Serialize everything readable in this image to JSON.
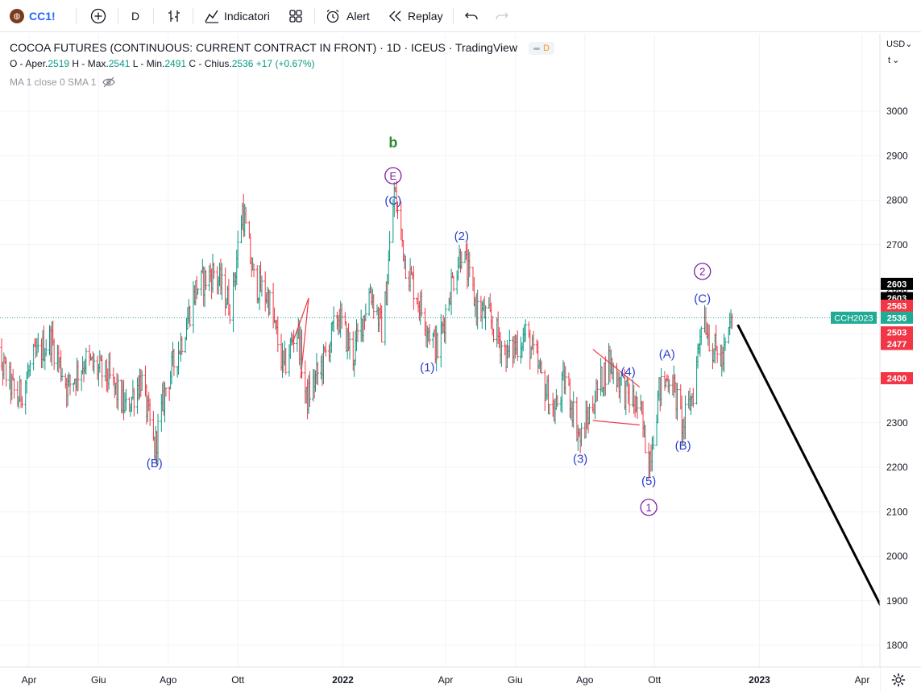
{
  "toolbar": {
    "symbol": "CC1!",
    "interval": "D",
    "indicators_label": "Indicatori",
    "alert_label": "Alert",
    "replay_label": "Replay",
    "icons": [
      "plus-circle-icon",
      "compare-icon",
      "indicators-icon",
      "templates-icon",
      "alert-icon",
      "replay-icon",
      "undo-icon",
      "redo-icon"
    ]
  },
  "legend": {
    "title": "COCOA FUTURES (CONTINUOUS: CURRENT CONTRACT IN FRONT) · 1D · ICEUS · TradingView",
    "badge": "D",
    "o_label": "O - Aper.",
    "o": "2519",
    "h_label": "H - Max.",
    "h": "2541",
    "l_label": "L - Min.",
    "l": "2491",
    "c_label": "C - Chius.",
    "c": "2536",
    "change": "+17 (+0.67%)",
    "ma": "MA 1 close 0 SMA 1"
  },
  "scale": {
    "currency": "USD",
    "unit": "t"
  },
  "colors": {
    "up": "#089981",
    "down": "#f23645",
    "wave_blue": "#2a3ecc",
    "wave_purple": "#7b1fa2",
    "wave_green": "#2e8b2e",
    "last_price": "#22ab94",
    "marker_red": "#f23645",
    "marker_black": "#000000"
  },
  "chart_data": {
    "type": "ohlc",
    "ylim": [
      1750,
      3100
    ],
    "yticks": [
      1800,
      1900,
      2000,
      2100,
      2200,
      2300,
      2400,
      2500,
      2600,
      2700,
      2800,
      2900,
      3000
    ],
    "xticks": [
      {
        "label": "Apr",
        "date": "2021-04-01"
      },
      {
        "label": "Giu",
        "date": "2021-06-01"
      },
      {
        "label": "Ago",
        "date": "2021-08-01"
      },
      {
        "label": "Ott",
        "date": "2021-10-01"
      },
      {
        "label": "2022",
        "date": "2022-01-01"
      },
      {
        "label": "Apr",
        "date": "2022-04-01"
      },
      {
        "label": "Giu",
        "date": "2022-06-01"
      },
      {
        "label": "Ago",
        "date": "2022-08-01"
      },
      {
        "label": "Ott",
        "date": "2022-10-01"
      },
      {
        "label": "2023",
        "date": "2023-01-01"
      },
      {
        "label": "Apr",
        "date": "2023-04-01"
      }
    ],
    "price_path": [
      [
        "2021-02-25",
        2480
      ],
      [
        "2021-03-10",
        2420
      ],
      [
        "2021-03-22",
        2350
      ],
      [
        "2021-04-05",
        2440
      ],
      [
        "2021-04-20",
        2490
      ],
      [
        "2021-05-05",
        2380
      ],
      [
        "2021-05-20",
        2440
      ],
      [
        "2021-06-10",
        2400
      ],
      [
        "2021-06-25",
        2330
      ],
      [
        "2021-07-08",
        2400
      ],
      [
        "2021-07-20",
        2240
      ],
      [
        "2021-07-30",
        2380
      ],
      [
        "2021-08-12",
        2480
      ],
      [
        "2021-08-25",
        2600
      ],
      [
        "2021-09-10",
        2640
      ],
      [
        "2021-09-25",
        2560
      ],
      [
        "2021-10-05",
        2780
      ],
      [
        "2021-10-15",
        2620
      ],
      [
        "2021-10-28",
        2580
      ],
      [
        "2021-11-10",
        2420
      ],
      [
        "2021-11-22",
        2520
      ],
      [
        "2021-11-30",
        2350
      ],
      [
        "2021-12-15",
        2440
      ],
      [
        "2021-12-28",
        2540
      ],
      [
        "2022-01-10",
        2450
      ],
      [
        "2022-01-25",
        2600
      ],
      [
        "2022-02-05",
        2500
      ],
      [
        "2022-02-15",
        2820
      ],
      [
        "2022-02-25",
        2660
      ],
      [
        "2022-03-10",
        2560
      ],
      [
        "2022-03-25",
        2460
      ],
      [
        "2022-04-05",
        2600
      ],
      [
        "2022-04-15",
        2690
      ],
      [
        "2022-04-28",
        2560
      ],
      [
        "2022-05-10",
        2530
      ],
      [
        "2022-05-25",
        2450
      ],
      [
        "2022-06-10",
        2500
      ],
      [
        "2022-06-20",
        2430
      ],
      [
        "2022-07-05",
        2320
      ],
      [
        "2022-07-15",
        2400
      ],
      [
        "2022-07-28",
        2260
      ],
      [
        "2022-08-10",
        2360
      ],
      [
        "2022-08-22",
        2440
      ],
      [
        "2022-09-05",
        2370
      ],
      [
        "2022-09-18",
        2330
      ],
      [
        "2022-09-26",
        2210
      ],
      [
        "2022-10-05",
        2370
      ],
      [
        "2022-10-15",
        2410
      ],
      [
        "2022-10-26",
        2290
      ],
      [
        "2022-11-05",
        2380
      ],
      [
        "2022-11-12",
        2560
      ],
      [
        "2022-11-20",
        2470
      ],
      [
        "2022-11-30",
        2440
      ],
      [
        "2022-12-08",
        2536
      ]
    ],
    "wave_labels": [
      {
        "text": "b",
        "date": "2022-02-14",
        "price": 2930,
        "color": "green"
      },
      {
        "text": "E",
        "date": "2022-02-14",
        "price": 2855,
        "color": "purple",
        "circle": true
      },
      {
        "text": "(C)",
        "date": "2022-02-14",
        "price": 2800,
        "color": "blue"
      },
      {
        "text": "(B)",
        "date": "2021-07-20",
        "price": 2210,
        "color": "blue"
      },
      {
        "text": "(2)",
        "date": "2022-04-15",
        "price": 2720,
        "color": "blue"
      },
      {
        "text": "(1)",
        "date": "2022-03-16",
        "price": 2425,
        "color": "blue"
      },
      {
        "text": "(3)",
        "date": "2022-07-28",
        "price": 2220,
        "color": "blue"
      },
      {
        "text": "(A)",
        "date": "2022-10-12",
        "price": 2455,
        "color": "blue"
      },
      {
        "text": "(4)",
        "date": "2022-09-08",
        "price": 2415,
        "color": "blue"
      },
      {
        "text": "(5)",
        "date": "2022-09-26",
        "price": 2170,
        "color": "blue"
      },
      {
        "text": "1",
        "date": "2022-09-26",
        "price": 2110,
        "color": "purple",
        "circle": true
      },
      {
        "text": "(B)",
        "date": "2022-10-26",
        "price": 2250,
        "color": "blue"
      },
      {
        "text": "2",
        "date": "2022-11-12",
        "price": 2640,
        "color": "purple",
        "circle": true
      },
      {
        "text": "(C)",
        "date": "2022-11-12",
        "price": 2580,
        "color": "blue"
      }
    ],
    "trendlines": [
      {
        "color": "red",
        "from": [
          "2021-11-18",
          2480
        ],
        "to": [
          "2021-12-02",
          2580
        ]
      },
      {
        "color": "red",
        "from": [
          "2021-12-02",
          2580
        ],
        "to": [
          "2021-11-25",
          2400
        ]
      },
      {
        "color": "red",
        "from": [
          "2022-08-08",
          2465
        ],
        "to": [
          "2022-09-18",
          2380
        ]
      },
      {
        "color": "red",
        "from": [
          "2022-08-08",
          2305
        ],
        "to": [
          "2022-09-18",
          2295
        ]
      },
      {
        "color": "black",
        "from": [
          "2022-12-13",
          2520
        ],
        "to": [
          "2023-04-18",
          1885
        ]
      }
    ],
    "price_line": 2536,
    "price_markers": [
      {
        "label": "2603",
        "price": 2612,
        "color": "black"
      },
      {
        "label": "2603",
        "price": 2580,
        "color": "black"
      },
      {
        "label": "2563",
        "price": 2563,
        "color": "red"
      },
      {
        "label": "2536",
        "price": 2536,
        "color": "green",
        "tag": "CCH2023"
      },
      {
        "label": "2503",
        "price": 2503,
        "color": "red"
      },
      {
        "label": "2477",
        "price": 2477,
        "color": "red"
      },
      {
        "label": "2400",
        "price": 2400,
        "color": "red"
      }
    ]
  }
}
